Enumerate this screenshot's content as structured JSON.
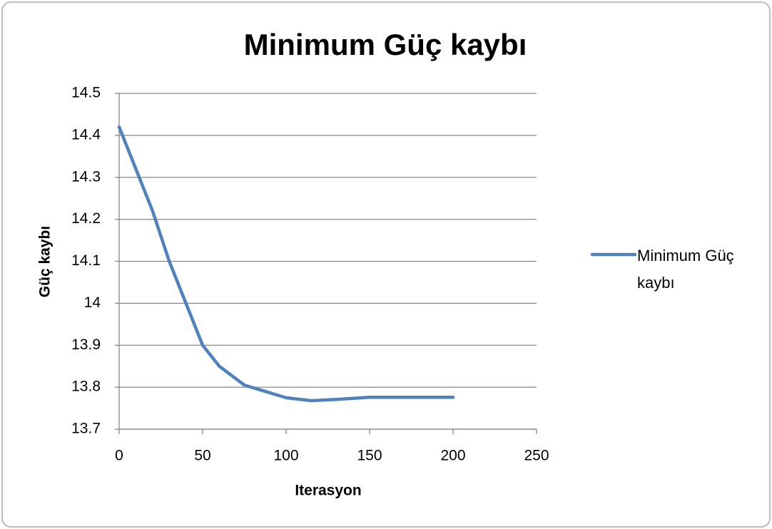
{
  "chart_data": {
    "type": "line",
    "title": "Minimum Güç kaybı",
    "x_label": "Iterasyon",
    "y_label": "Güç kaybı",
    "series": [
      {
        "name": "Minimum Güç kaybı",
        "color": "#4f81bd",
        "x": [
          0,
          10,
          20,
          30,
          40,
          50,
          60,
          75,
          90,
          100,
          115,
          130,
          150,
          175,
          200
        ],
        "values": [
          14.42,
          14.32,
          14.22,
          14.1,
          14.0,
          13.9,
          13.85,
          13.805,
          13.787,
          13.775,
          13.768,
          13.771,
          13.776,
          13.776,
          13.776
        ]
      }
    ],
    "xlim": [
      0,
      250
    ],
    "xticks": [
      0,
      50,
      100,
      150,
      200,
      250
    ],
    "ylim": [
      13.7,
      14.5
    ],
    "yticks": [
      13.7,
      13.8,
      13.9,
      14,
      14.1,
      14.2,
      14.3,
      14.4,
      14.5
    ],
    "grid": true,
    "legend": "right"
  }
}
